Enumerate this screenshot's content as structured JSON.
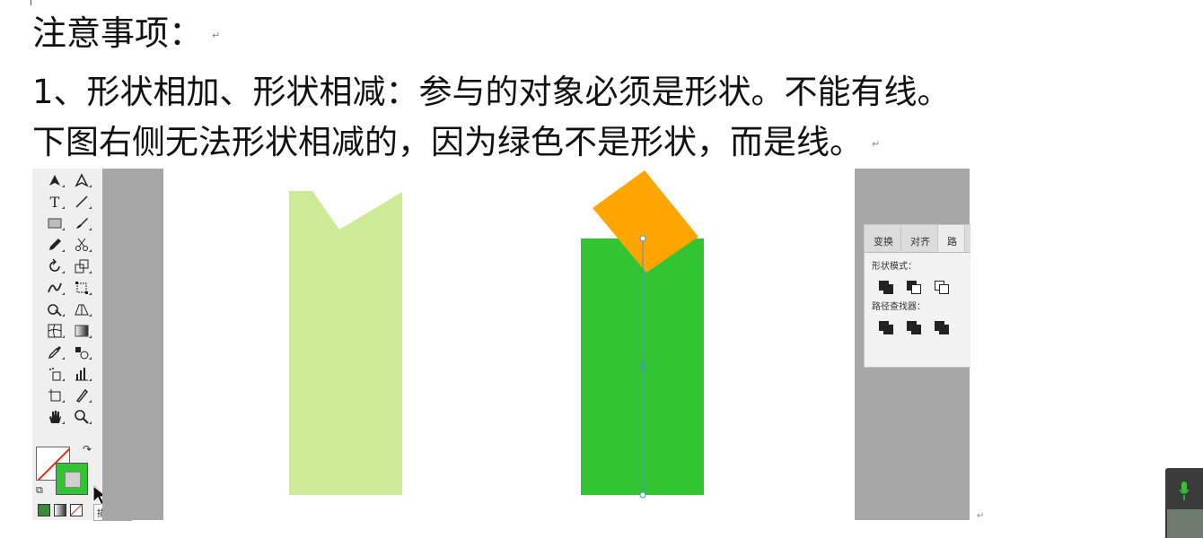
{
  "document": {
    "title_line": "注意事项：",
    "rule_line": "1、形状相加、形状相减：参与的对象必须是形状。不能有线。",
    "explain_line": "下图右侧无法形状相减的，因为绿色不是形状，而是线。",
    "paragraph_mark": "↵"
  },
  "toolbar": {
    "tools": [
      [
        "pen-tool-icon",
        "pen-add-icon"
      ],
      [
        "type-tool-icon",
        "line-tool-icon"
      ],
      [
        "rectangle-tool-icon",
        "brush-tool-icon"
      ],
      [
        "pencil-tool-icon",
        "scissors-tool-icon"
      ],
      [
        "rotate-tool-icon",
        "scale-tool-icon"
      ],
      [
        "warp-tool-icon",
        "free-transform-icon"
      ],
      [
        "shape-builder-icon",
        "perspective-grid-icon"
      ],
      [
        "mesh-tool-icon",
        "gradient-tool-icon"
      ],
      [
        "eyedropper-tool-icon",
        "blend-tool-icon"
      ],
      [
        "symbol-sprayer-icon",
        "graph-tool-icon"
      ],
      [
        "artboard-tool-icon",
        "slice-tool-icon"
      ],
      [
        "hand-tool-icon",
        "zoom-tool-icon"
      ]
    ],
    "type_glyph": "T",
    "line_glyph": "╱",
    "tooltip": "描边(X)"
  },
  "colors": {
    "light_green": "#cdea96",
    "green": "#33c433",
    "orange": "#ffa500",
    "selection_blue": "#4d8fd6"
  },
  "panel": {
    "tabs": [
      "变换",
      "对齐",
      "路"
    ],
    "shape_modes_label": "形状模式：",
    "pathfinder_label": "路径查找器："
  }
}
